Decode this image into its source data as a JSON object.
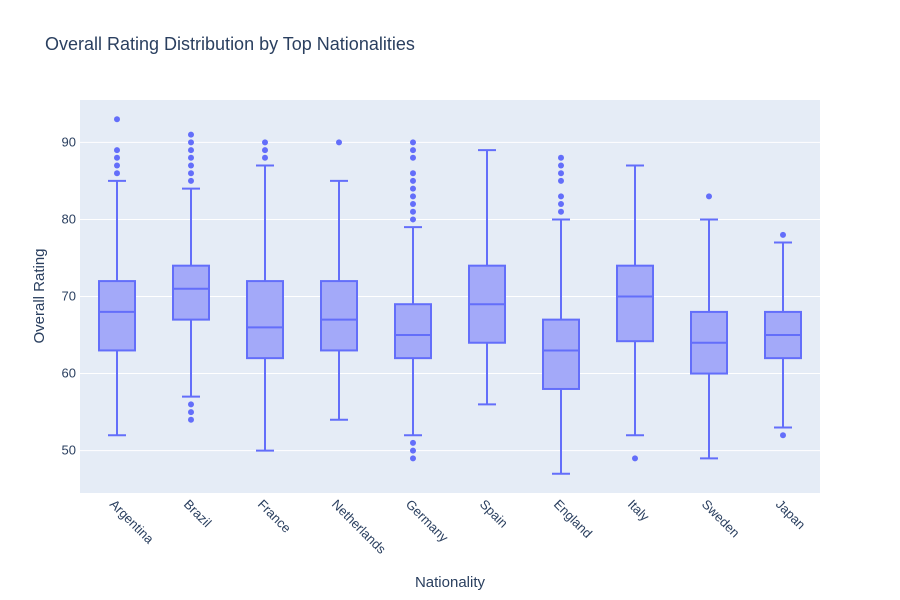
{
  "chart_data": {
    "type": "box",
    "title": "Overall Rating Distribution by Top Nationalities",
    "xlabel": "Nationality",
    "ylabel": "Overall Rating",
    "ylim": [
      44.5,
      95.5
    ],
    "yticks": [
      50,
      60,
      70,
      80,
      90
    ],
    "grid": true,
    "legend": "none",
    "colors": {
      "plot_bg": "#E5ECF6",
      "box_line": "#636EFA",
      "box_fill": "#A3A9F9",
      "grid": "#FFFFFF",
      "text": "#2a3f5f"
    },
    "categories": [
      "Argentina",
      "Brazil",
      "France",
      "Netherlands",
      "Germany",
      "Spain",
      "England",
      "Italy",
      "Sweden",
      "Japan"
    ],
    "boxes": [
      {
        "category": "Argentina",
        "lower_fence": 52,
        "q1": 63,
        "median": 68,
        "q3": 72,
        "upper_fence": 85,
        "outliers": [
          86,
          87,
          88,
          89,
          93
        ]
      },
      {
        "category": "Brazil",
        "lower_fence": 57,
        "q1": 67,
        "median": 71,
        "q3": 74,
        "upper_fence": 84,
        "outliers": [
          54,
          55,
          56,
          85,
          86,
          87,
          88,
          89,
          90,
          91
        ]
      },
      {
        "category": "France",
        "lower_fence": 50,
        "q1": 62,
        "median": 66,
        "q3": 72,
        "upper_fence": 87,
        "outliers": [
          88,
          89,
          90
        ]
      },
      {
        "category": "Netherlands",
        "lower_fence": 54,
        "q1": 63,
        "median": 67,
        "q3": 72,
        "upper_fence": 85,
        "outliers": [
          90
        ]
      },
      {
        "category": "Germany",
        "lower_fence": 52,
        "q1": 62,
        "median": 65,
        "q3": 69,
        "upper_fence": 79,
        "outliers": [
          49,
          50,
          51,
          80,
          81,
          82,
          83,
          84,
          85,
          86,
          88,
          89,
          90
        ]
      },
      {
        "category": "Spain",
        "lower_fence": 56,
        "q1": 64,
        "median": 69,
        "q3": 74,
        "upper_fence": 89,
        "outliers": []
      },
      {
        "category": "England",
        "lower_fence": 47,
        "q1": 58,
        "median": 63,
        "q3": 67,
        "upper_fence": 80,
        "outliers": [
          81,
          82,
          83,
          85,
          86,
          87,
          88
        ]
      },
      {
        "category": "Italy",
        "lower_fence": 52,
        "q1": 64.2,
        "median": 70,
        "q3": 74,
        "upper_fence": 87,
        "outliers": [
          49
        ]
      },
      {
        "category": "Sweden",
        "lower_fence": 49,
        "q1": 60,
        "median": 64,
        "q3": 68,
        "upper_fence": 80,
        "outliers": [
          83
        ]
      },
      {
        "category": "Japan",
        "lower_fence": 53,
        "q1": 62,
        "median": 65,
        "q3": 68,
        "upper_fence": 77,
        "outliers": [
          52,
          78
        ]
      }
    ]
  }
}
